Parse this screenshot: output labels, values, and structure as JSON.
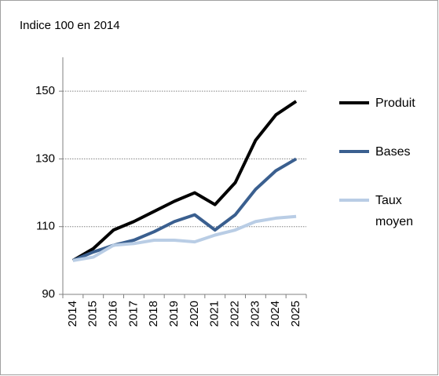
{
  "chart_data": {
    "type": "line",
    "title": "Indice 100 en 2014",
    "categories": [
      "2014",
      "2015",
      "2016",
      "2017",
      "2018",
      "2019",
      "2020",
      "2021",
      "2022",
      "2023",
      "2024",
      "2025"
    ],
    "series": [
      {
        "name": "Produit",
        "color": "#000000",
        "values": [
          100,
          103.5,
          109,
          111.5,
          114.5,
          117.5,
          120,
          116.5,
          123,
          135.5,
          143,
          147
        ]
      },
      {
        "name": "Bases",
        "color": "#3a5f8f",
        "values": [
          100,
          102.5,
          104.5,
          106,
          108.5,
          111.5,
          113.5,
          109,
          113.5,
          121,
          126.5,
          130
        ]
      },
      {
        "name": "Taux moyen",
        "color": "#b9cde5",
        "values": [
          100,
          101,
          104.5,
          105,
          106,
          106,
          105.5,
          107.5,
          109,
          111.5,
          112.5,
          113
        ]
      }
    ],
    "ylim": [
      90,
      160
    ],
    "yticks": [
      90,
      110,
      130,
      150
    ],
    "grid": true,
    "legend": "right"
  }
}
